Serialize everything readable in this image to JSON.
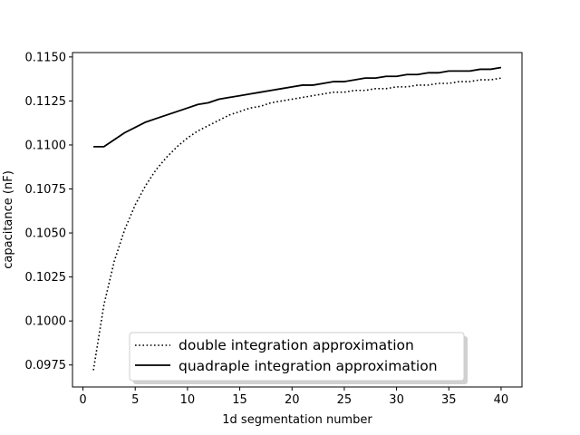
{
  "chart_data": {
    "type": "line",
    "title": "",
    "xlabel": "1d segmentation number",
    "ylabel": "capacitance (nF)",
    "xlim": [
      -1,
      42
    ],
    "ylim": [
      0.09625,
      0.11525
    ],
    "xticks": [
      0,
      5,
      10,
      15,
      20,
      25,
      30,
      35,
      40
    ],
    "xtick_labels": [
      "0",
      "5",
      "10",
      "15",
      "20",
      "25",
      "30",
      "35",
      "40"
    ],
    "yticks": [
      0.0975,
      0.1,
      0.1025,
      0.105,
      0.1075,
      0.11,
      0.1125,
      0.115
    ],
    "ytick_labels": [
      "0.0975",
      "0.1000",
      "0.1025",
      "0.1050",
      "0.1075",
      "0.1100",
      "0.1125",
      "0.1150"
    ],
    "grid": false,
    "legend": {
      "position": "lower-center"
    },
    "series": [
      {
        "name": "double integration approximation",
        "style": "dotted",
        "color": "#000000",
        "x": [
          1,
          2,
          3,
          4,
          5,
          6,
          7,
          8,
          9,
          10,
          11,
          12,
          13,
          14,
          15,
          16,
          17,
          18,
          19,
          20,
          21,
          22,
          23,
          24,
          25,
          26,
          27,
          28,
          29,
          30,
          31,
          32,
          33,
          34,
          35,
          36,
          37,
          38,
          39,
          40
        ],
        "y": [
          0.0972,
          0.1009,
          0.1034,
          0.1052,
          0.1066,
          0.1077,
          0.1086,
          0.1093,
          0.1099,
          0.1104,
          0.1108,
          0.1111,
          0.1114,
          0.1117,
          0.1119,
          0.1121,
          0.1122,
          0.1124,
          0.1125,
          0.1126,
          0.1127,
          0.1128,
          0.1129,
          0.113,
          0.113,
          0.1131,
          0.1131,
          0.1132,
          0.1132,
          0.1133,
          0.1133,
          0.1134,
          0.1134,
          0.1135,
          0.1135,
          0.1136,
          0.1136,
          0.1137,
          0.1137,
          0.1138
        ]
      },
      {
        "name": "quadraple integration approximation",
        "style": "solid",
        "color": "#000000",
        "x": [
          1,
          2,
          3,
          4,
          5,
          6,
          7,
          8,
          9,
          10,
          11,
          12,
          13,
          14,
          15,
          16,
          17,
          18,
          19,
          20,
          21,
          22,
          23,
          24,
          25,
          26,
          27,
          28,
          29,
          30,
          31,
          32,
          33,
          34,
          35,
          36,
          37,
          38,
          39,
          40
        ],
        "y": [
          0.1099,
          0.1099,
          0.1103,
          0.1107,
          0.111,
          0.1113,
          0.1115,
          0.1117,
          0.1119,
          0.1121,
          0.1123,
          0.1124,
          0.1126,
          0.1127,
          0.1128,
          0.1129,
          0.113,
          0.1131,
          0.1132,
          0.1133,
          0.1134,
          0.1134,
          0.1135,
          0.1136,
          0.1136,
          0.1137,
          0.1138,
          0.1138,
          0.1139,
          0.1139,
          0.114,
          0.114,
          0.1141,
          0.1141,
          0.1142,
          0.1142,
          0.1142,
          0.1143,
          0.1143,
          0.1144
        ]
      }
    ]
  }
}
